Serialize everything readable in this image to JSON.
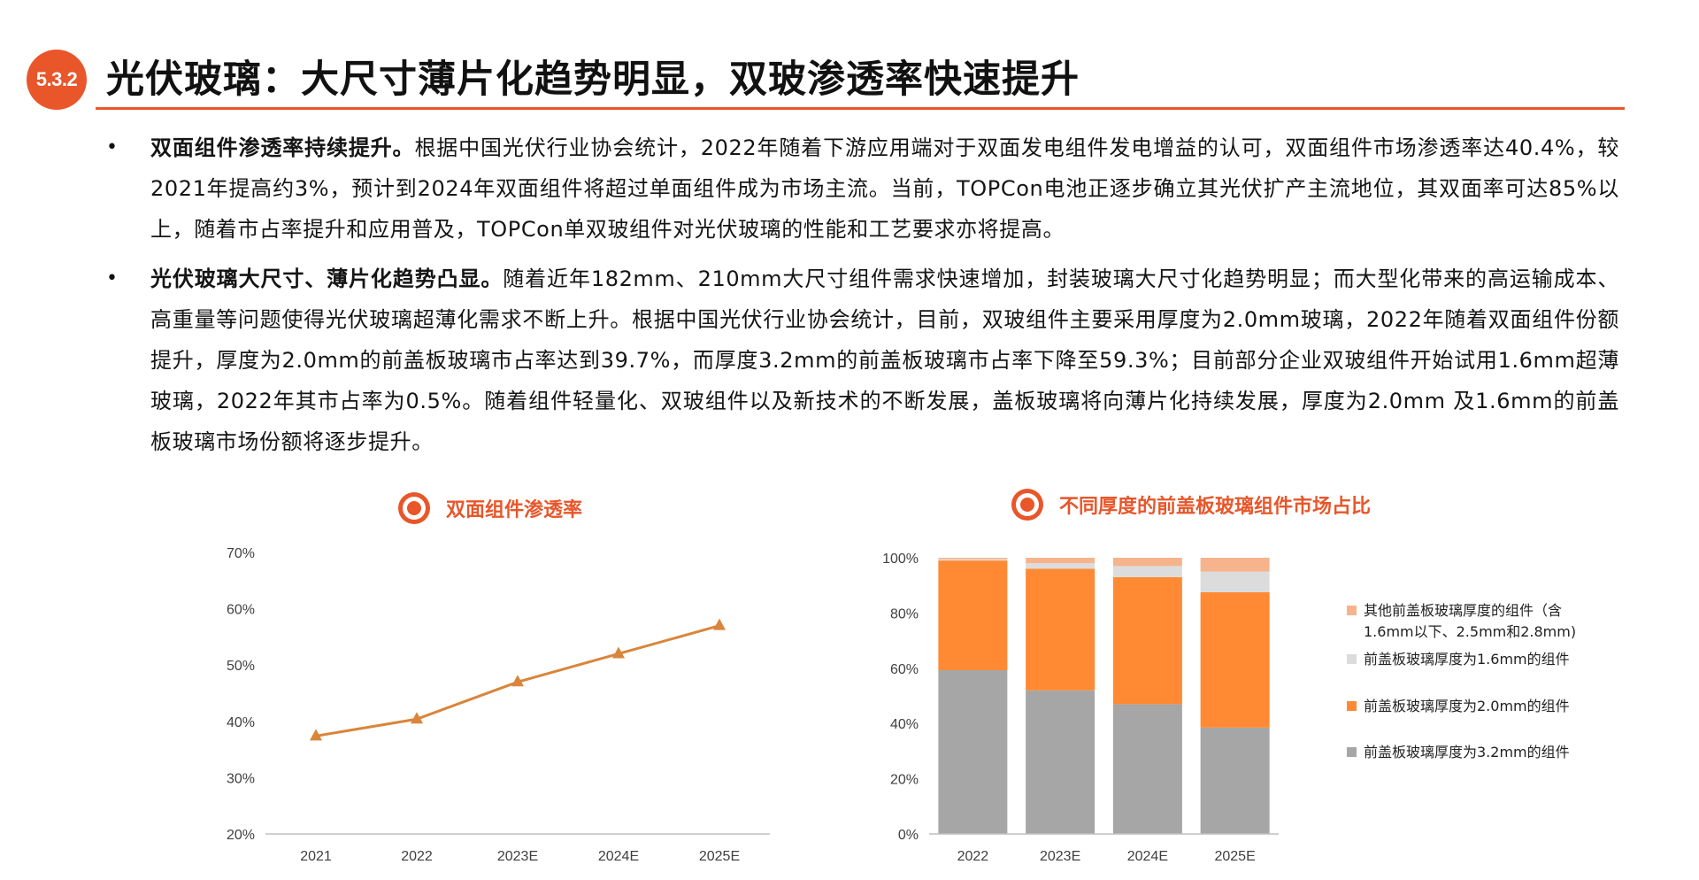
{
  "header": {
    "section_number": "5.3.2",
    "title": "光伏玻璃：大尺寸薄片化趋势明显，双玻渗透率快速提升"
  },
  "bullets": [
    {
      "bold": "双面组件渗透率持续提升。",
      "text": "根据中国光伏行业协会统计，2022年随着下游应用端对于双面发电组件发电增益的认可，双面组件市场渗透率达40.4%，较2021年提高约3%，预计到2024年双面组件将超过单面组件成为市场主流。当前，TOPCon电池正逐步确立其光伏扩产主流地位，其双面率可达85%以上，随着市占率提升和应用普及，TOPCon单双玻组件对光伏玻璃的性能和工艺要求亦将提高。"
    },
    {
      "bold": "光伏玻璃大尺寸、薄片化趋势凸显。",
      "text": "随着近年182mm、210mm大尺寸组件需求快速增加，封装玻璃大尺寸化趋势明显；而大型化带来的高运输成本、高重量等问题使得光伏玻璃超薄化需求不断上升。根据中国光伏行业协会统计，目前，双玻组件主要采用厚度为2.0mm玻璃，2022年随着双面组件份额提升，厚度为2.0mm的前盖板玻璃市占率达到39.7%，而厚度3.2mm的前盖板玻璃市占率下降至59.3%；目前部分企业双玻组件开始试用1.6mm超薄玻璃，2022年其市占率为0.5%。随着组件轻量化、双玻组件以及新技术的不断发展，盖板玻璃将向薄片化持续发展，厚度为2.0mm 及1.6mm的前盖板玻璃市场份额将逐步提升。"
    }
  ],
  "chart_data": [
    {
      "type": "line",
      "title": "双面组件渗透率",
      "categories": [
        "2021",
        "2022",
        "2023E",
        "2024E",
        "2025E"
      ],
      "series": [
        {
          "name": "",
          "values": [
            37.4,
            40.4,
            47.0,
            52.0,
            57.0
          ],
          "color": "#D9853B"
        }
      ],
      "ylim": [
        20,
        70
      ],
      "yticks": [
        "20%",
        "30%",
        "40%",
        "50%",
        "60%",
        "70%"
      ],
      "ytick_values": [
        20,
        30,
        40,
        50,
        60,
        70
      ],
      "grid": false,
      "legend": "none"
    },
    {
      "type": "bar",
      "stacked": true,
      "title": "不同厚度的前盖板玻璃组件市场占比",
      "categories": [
        "2022",
        "2023E",
        "2024E",
        "2025E"
      ],
      "series": [
        {
          "name": "前盖板玻璃厚度为3.2mm的组件",
          "values": [
            59.3,
            52,
            47,
            38.5
          ],
          "color": "#A6A6A6"
        },
        {
          "name": "前盖板玻璃厚度为2.0mm的组件",
          "values": [
            39.7,
            44,
            46,
            49
          ],
          "color": "#FF8A33"
        },
        {
          "name": "前盖板玻璃厚度为1.6mm的组件",
          "values": [
            0.5,
            2,
            4,
            7.5
          ],
          "color": "#DCDCDC"
        },
        {
          "name": "其他前盖板玻璃厚度的组件（含1.6mm以下、2.5mm和2.8mm)",
          "values": [
            0.5,
            2,
            3,
            5
          ],
          "color": "#F7B48C"
        }
      ],
      "ylim": [
        0,
        100
      ],
      "yticks": [
        "0%",
        "20%",
        "40%",
        "60%",
        "80%",
        "100%"
      ],
      "ytick_values": [
        0,
        20,
        40,
        60,
        80,
        100
      ],
      "grid": false,
      "legend": "right"
    }
  ],
  "colors": {
    "accent": "#E8562A",
    "axis": "#BFBFBF",
    "tick_text": "#404040"
  },
  "icons": {
    "chart_title_icon": "target-icon"
  }
}
